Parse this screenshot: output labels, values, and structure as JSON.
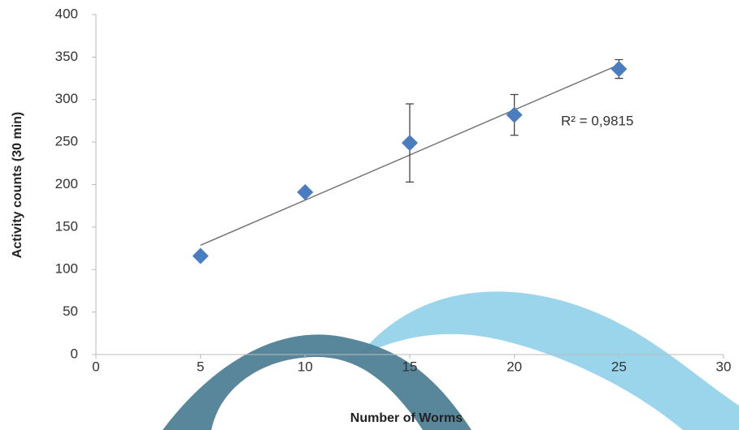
{
  "chart_data": {
    "type": "scatter",
    "x_label": "Number of Worms",
    "y_label": "Activity counts (30 min)",
    "annotation": "R² = 0,9815",
    "x": [
      5,
      10,
      15,
      20,
      25
    ],
    "series": [
      {
        "color": "#4a7cc0",
        "values": [
          116,
          191,
          249,
          282,
          336
        ],
        "errors": [
          0,
          0,
          46,
          24,
          11
        ]
      }
    ],
    "trendline": true,
    "xlim": [
      0,
      30
    ],
    "xticks": [
      0,
      5,
      10,
      15,
      20,
      25,
      30
    ],
    "ylim": [
      0,
      400
    ],
    "yticks": [
      0,
      50,
      100,
      150,
      200,
      250,
      300,
      350,
      400
    ]
  }
}
